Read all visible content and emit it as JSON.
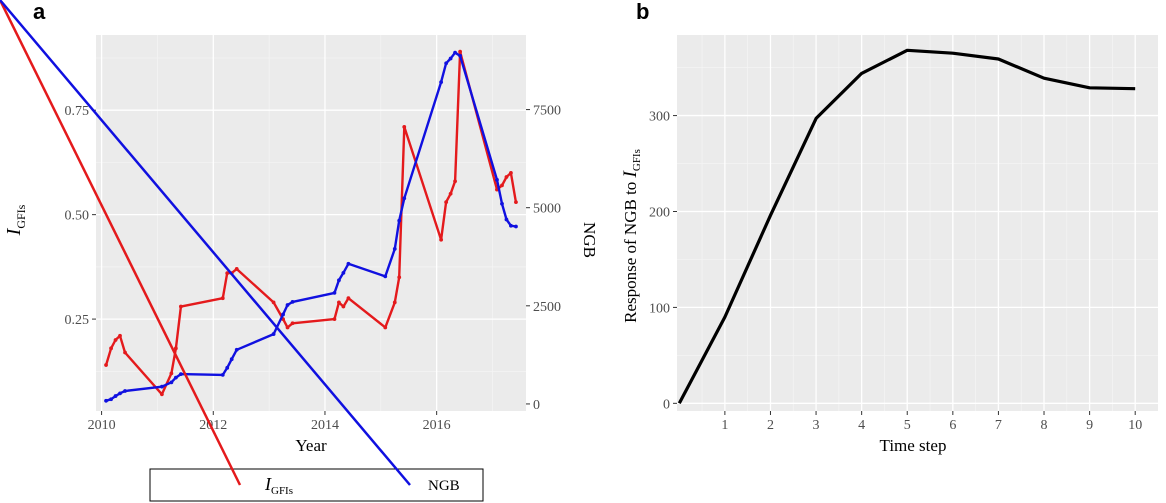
{
  "chart_data": [
    {
      "panel": "a",
      "type": "line",
      "xlabel": "Year",
      "ylabel_main": "I",
      "ylabel_sub": "GFIs",
      "ylabel_right": "NGB",
      "xlim": [
        2009.9,
        2017.6
      ],
      "ylim_left": [
        0.03,
        0.93
      ],
      "ylim_right": [
        -180,
        9400
      ],
      "x_ticks": [
        2010,
        2012,
        2014,
        2016
      ],
      "x_tick_labels": [
        "2010",
        "2012",
        "2014",
        "2016"
      ],
      "y_left_ticks": [
        0.25,
        0.5,
        0.75
      ],
      "y_left_tick_labels": [
        "0.25",
        "0.50",
        "0.75"
      ],
      "y_right_ticks": [
        0,
        2500,
        5000,
        7500
      ],
      "y_right_tick_labels": [
        "0",
        "2500",
        "5000",
        "7500"
      ],
      "grid": true,
      "legend": "bottom",
      "series": [
        {
          "name": "I",
          "name_sub": "GFIs",
          "color": "#e41a1c",
          "axis": "left",
          "x": [
            2010.08,
            2010.17,
            2010.25,
            2010.33,
            2010.42,
            2011.08,
            2011.25,
            2011.33,
            2011.42,
            2012.17,
            2012.25,
            2012.33,
            2012.42,
            2013.08,
            2013.25,
            2013.33,
            2013.42,
            2014.17,
            2014.25,
            2014.33,
            2014.42,
            2015.08,
            2015.25,
            2015.33,
            2015.42,
            2016.08,
            2016.17,
            2016.25,
            2016.33,
            2016.42,
            2017.08,
            2017.17,
            2017.25,
            2017.33,
            2017.42
          ],
          "y": [
            0.14,
            0.18,
            0.2,
            0.21,
            0.17,
            0.07,
            0.12,
            0.18,
            0.28,
            0.3,
            0.36,
            0.36,
            0.37,
            0.29,
            0.25,
            0.23,
            0.24,
            0.25,
            0.29,
            0.28,
            0.3,
            0.23,
            0.29,
            0.35,
            0.71,
            0.44,
            0.53,
            0.55,
            0.58,
            0.89,
            0.56,
            0.57,
            0.59,
            0.6,
            0.53
          ]
        },
        {
          "name": "NGB",
          "color": "#1010e0",
          "axis": "right",
          "x": [
            2010.08,
            2010.17,
            2010.25,
            2010.33,
            2010.42,
            2011.08,
            2011.25,
            2011.33,
            2011.42,
            2012.17,
            2012.25,
            2012.33,
            2012.42,
            2013.08,
            2013.25,
            2013.33,
            2013.42,
            2014.17,
            2014.25,
            2014.33,
            2014.42,
            2015.08,
            2015.25,
            2015.33,
            2015.42,
            2016.08,
            2016.17,
            2016.25,
            2016.33,
            2016.42,
            2017.08,
            2017.17,
            2017.25,
            2017.33,
            2017.42
          ],
          "y": [
            80,
            120,
            200,
            270,
            330,
            440,
            550,
            670,
            760,
            740,
            920,
            1140,
            1380,
            1780,
            2280,
            2520,
            2600,
            2830,
            3150,
            3340,
            3570,
            3250,
            3950,
            4670,
            5240,
            8200,
            8680,
            8800,
            8950,
            8870,
            5710,
            5100,
            4700,
            4540,
            4520
          ]
        }
      ]
    },
    {
      "panel": "b",
      "type": "line",
      "xlabel": "Time step",
      "ylabel_prefix": "Response of NGB to ",
      "ylabel_main": "I",
      "ylabel_sub": "GFIs",
      "xlim": [
        -0.05,
        10.5
      ],
      "ylim": [
        -8,
        384
      ],
      "x_ticks": [
        1,
        2,
        3,
        4,
        5,
        6,
        7,
        8,
        9,
        10
      ],
      "x_tick_labels": [
        "1",
        "2",
        "3",
        "4",
        "5",
        "6",
        "7",
        "8",
        "9",
        "10"
      ],
      "y_ticks": [
        0,
        100,
        200,
        300
      ],
      "y_tick_labels": [
        "0",
        "100",
        "200",
        "300"
      ],
      "grid": true,
      "series": [
        {
          "color": "#000000",
          "x": [
            0,
            1,
            2,
            3,
            4,
            5,
            6,
            7,
            8,
            9,
            10
          ],
          "y": [
            0,
            90,
            196,
            297,
            344,
            368,
            365,
            359,
            339,
            329,
            328
          ]
        }
      ]
    }
  ]
}
